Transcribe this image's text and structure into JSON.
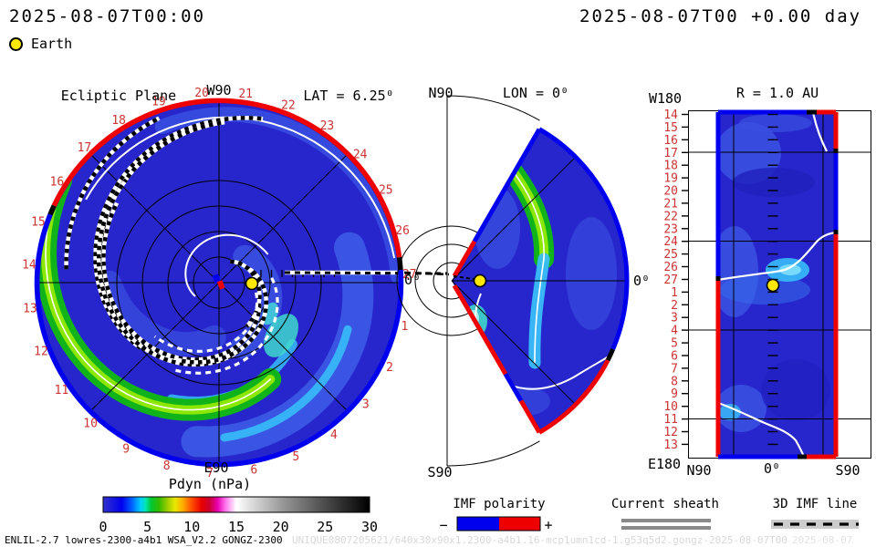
{
  "header": {
    "datetime_left": "2025-08-07T00:00",
    "datetime_right": "2025-08-07T00 +0.00 day",
    "earth_label": "Earth"
  },
  "panels": {
    "day_markers": [
      "1",
      "2",
      "3",
      "4",
      "5",
      "6",
      "7",
      "8",
      "9",
      "10",
      "11",
      "12",
      "13",
      "14",
      "15",
      "16",
      "17",
      "18",
      "19",
      "20",
      "21",
      "22",
      "23",
      "24",
      "25",
      "26",
      "27"
    ],
    "ecliptic": {
      "title": "Ecliptic Plane",
      "lat_label": "LAT = 6.25⁰",
      "pole_top": "W90",
      "pole_bottom": "E90",
      "zero_label": "0⁰"
    },
    "meridional": {
      "title": "LON = 0⁰",
      "top": "N90",
      "bottom": "S90",
      "zero_label": "0⁰"
    },
    "radial": {
      "title": "R = 1.0 AU",
      "corner_top": "W180",
      "corner_bottom": "E180",
      "x_tick_left": "N90",
      "x_tick_center": "0⁰",
      "x_tick_right": "S90"
    }
  },
  "colorbar": {
    "title": "Pdyn (nPa)",
    "ticks": [
      "0",
      "5",
      "10",
      "15",
      "20",
      "25",
      "30"
    ]
  },
  "legends": {
    "imf": {
      "title": "IMF polarity",
      "minus": "−",
      "plus": "+"
    },
    "sheath": {
      "title": "Current sheath"
    },
    "imf_line": {
      "title": "3D IMF line"
    }
  },
  "footer": {
    "model": "ENLIL-2.7 lowres-2300-a4b1 WSA_V2.2 GONGZ-2300",
    "watermark": "UNIQUE0807205621/640x30x90x1.2300-a4b1.16-mcp1umn1cd-1.g53q5d2.gongz-2025-08-07T00",
    "watermark2": "2025-08-07"
  },
  "palette": {
    "background": "#ffffff",
    "map_blue": "#2626cc",
    "mid_blue": "#3a50e0",
    "light_blue": "#3d5ae6",
    "cyan": "#38bdf8",
    "teal": "#3fd8cc",
    "green": "#11b31b",
    "green_core": "#8ce800",
    "polarity_negative": "#0000ee",
    "polarity_positive": "#ee0000",
    "earth_yellow": "#ffe800",
    "day_label_red": "#cc3333",
    "sheath_gray": "#8a8a8a",
    "imf_line_bg": "#cccccc",
    "watermark_gray": "#d8d8d8",
    "colorbar_stops": [
      {
        "p": 0,
        "c": "#3333cc"
      },
      {
        "p": 7,
        "c": "#0000ee"
      },
      {
        "p": 11,
        "c": "#0066ff"
      },
      {
        "p": 14,
        "c": "#00ccff"
      },
      {
        "p": 16,
        "c": "#00e8b0"
      },
      {
        "p": 18,
        "c": "#00c833"
      },
      {
        "p": 21,
        "c": "#33bb00"
      },
      {
        "p": 24,
        "c": "#99cc00"
      },
      {
        "p": 27,
        "c": "#e8e800"
      },
      {
        "p": 30,
        "c": "#ffaa00"
      },
      {
        "p": 33,
        "c": "#ff5500"
      },
      {
        "p": 37,
        "c": "#e80000"
      },
      {
        "p": 40,
        "c": "#cc0033"
      },
      {
        "p": 43,
        "c": "#e800b0"
      },
      {
        "p": 46,
        "c": "#ff77ee"
      },
      {
        "p": 50,
        "c": "#ffffff"
      },
      {
        "p": 55,
        "c": "#e0e0e0"
      },
      {
        "p": 67,
        "c": "#999999"
      },
      {
        "p": 83,
        "c": "#4d4d4d"
      },
      {
        "p": 100,
        "c": "#000000"
      }
    ]
  },
  "chart_data": [
    {
      "type": "heatmap",
      "name": "ecliptic-plane-polar-map",
      "title": "Ecliptic Plane",
      "quantity": "Pdyn (nPa)",
      "color_range": [
        0,
        30
      ],
      "lat_label": "LAT = 6.25⁰",
      "angular_labels": {
        "top": "W90",
        "bottom": "E90",
        "right": "0⁰"
      },
      "day_markers": [
        1,
        2,
        3,
        4,
        5,
        6,
        7,
        8,
        9,
        10,
        11,
        12,
        13,
        14,
        15,
        16,
        17,
        18,
        19,
        20,
        21,
        22,
        23,
        24,
        25,
        26,
        27
      ],
      "features": [
        "Earth marker (yellow) on Sun-Earth line at ~1 AU right of center Sun marker",
        "background solar wind Pdyn ≈ 1-3 nPa (blue), spiral bands ≈ 3-4 nPa (cyan)",
        "bright Parker-spiral arc Pdyn ≈ 5-8 nPa (green/yellow-green) sweeping from day-16 rim to day-7 sector",
        "outer boundary IMF polarity: positive/red ≈ days 15.5-26.5, negative/blue elsewhere, black at sector crossings",
        "black-white dashed 3D IMF field lines spiraling outward",
        "white current-sheath spiral lines",
        "dashed Sun-Earth IMF line extended to 0⁰ with ruler ticks"
      ]
    },
    {
      "type": "heatmap",
      "name": "meridional-plane-map",
      "title": "LON = 0⁰",
      "quantity": "Pdyn (nPa)",
      "color_range": [
        0,
        30
      ],
      "angular_labels": {
        "top": "N90",
        "bottom": "S90",
        "right": "0⁰"
      },
      "features": [
        "wedge covers ±60° latitude at longitude 0⁰",
        "green arc ≈ 5-7 nPa in northern half with cyan tail toward equator",
        "Earth marker (yellow) on equatorial line near inner boundary",
        "inner edge positive/red polarity, upper edge negative/blue, outer arc blue north / red south with black crossing ≈ 25°S",
        "white current sheath crossing southern half"
      ]
    },
    {
      "type": "heatmap",
      "name": "constant-radius-map",
      "title": "R = 1.0 AU",
      "quantity": "Pdyn (nPa)",
      "color_range": [
        0,
        30
      ],
      "x_axis": {
        "ticks": [
          "N90",
          "0⁰",
          "S90"
        ],
        "corner_top": "W180",
        "corner_bottom": "E180"
      },
      "y_axis": {
        "ticks": [
          14,
          15,
          16,
          17,
          18,
          19,
          20,
          21,
          22,
          23,
          24,
          25,
          26,
          27,
          1,
          2,
          3,
          4,
          5,
          6,
          7,
          8,
          9,
          10,
          11,
          12,
          13
        ],
        "unit": "day marker"
      },
      "features": [
        "latitude-vs-day map at 1 AU, colored region spans ±60° latitude",
        "Earth marker (yellow) at 0⁰ latitude between day 27 and day 1",
        "white current-sheath lines crossing near days 17, 23-27 and 9-13",
        "border polarity: left blue above day 27 / red below; right red-blue-red; uniform Pdyn ≈ 1-3 nPa with cyan patch ≈ 4 nPa near Earth"
      ]
    }
  ]
}
